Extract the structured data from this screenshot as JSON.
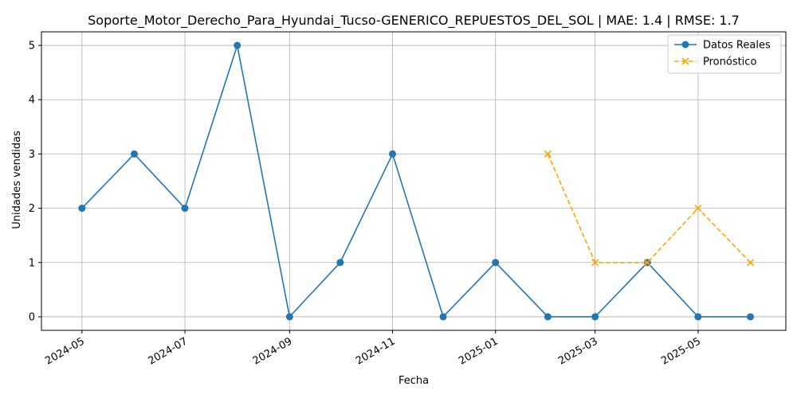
{
  "chart_data": {
    "type": "line",
    "title": "Soporte_Motor_Derecho_Para_Hyundai_Tucso-GENERICO_REPUESTOS_DEL_SOL | MAE: 1.4 | RMSE: 1.7",
    "xlabel": "Fecha",
    "ylabel": "Unidades vendidas",
    "ylim": [
      -0.25,
      5.25
    ],
    "xlim": [
      "2024-04-07",
      "2025-06-22"
    ],
    "grid": true,
    "legend_position": "top-right",
    "x_ticks": [
      "2024-05",
      "2024-07",
      "2024-09",
      "2024-11",
      "2025-01",
      "2025-03",
      "2025-05"
    ],
    "y_ticks": [
      0,
      1,
      2,
      3,
      4,
      5
    ],
    "series": [
      {
        "name": "Datos Reales",
        "color": "#1f77b4",
        "linestyle": "solid",
        "marker": "circle",
        "x": [
          "2024-05-01",
          "2024-06-01",
          "2024-07-01",
          "2024-08-01",
          "2024-09-01",
          "2024-10-01",
          "2024-11-01",
          "2024-12-01",
          "2025-01-01",
          "2025-02-01",
          "2025-03-01",
          "2025-04-01",
          "2025-05-01",
          "2025-06-01"
        ],
        "values": [
          2,
          3,
          2,
          5,
          0,
          1,
          3,
          0,
          1,
          0,
          0,
          1,
          0,
          0
        ]
      },
      {
        "name": "Pronóstico",
        "color": "#ffa500",
        "linestyle": "dashed",
        "marker": "x",
        "x": [
          "2025-02-01",
          "2025-03-01",
          "2025-04-01",
          "2025-05-01",
          "2025-06-01"
        ],
        "values": [
          3,
          1,
          1,
          2,
          1
        ]
      }
    ]
  }
}
